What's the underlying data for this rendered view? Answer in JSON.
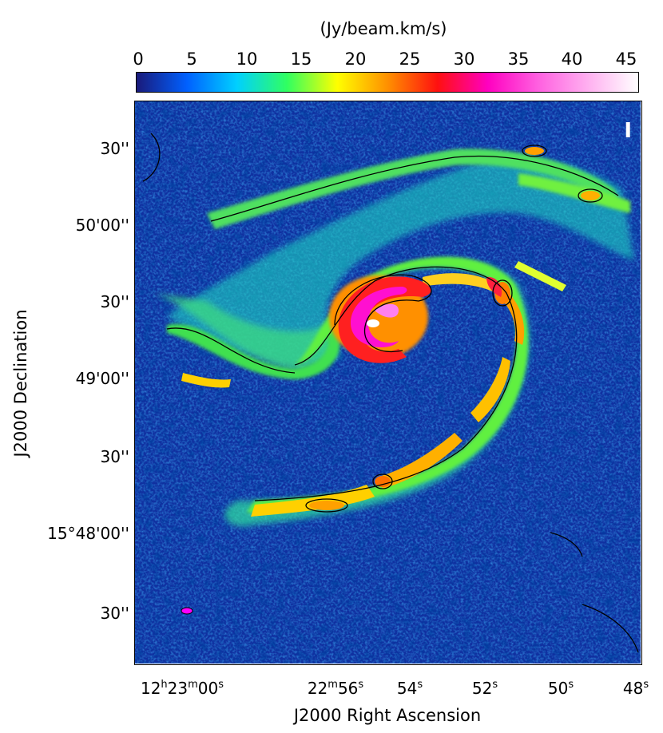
{
  "colorbar": {
    "unit_label": "(Jy/beam.km/s)",
    "ticks": [
      "0",
      "5",
      "10",
      "15",
      "20",
      "25",
      "30",
      "35",
      "40",
      "45"
    ],
    "colors": [
      "#1a1a7a",
      "#0060ff",
      "#00d0ff",
      "#30ff60",
      "#ffff00",
      "#ff9000",
      "#ff1010",
      "#ff00c0",
      "#ff60e0",
      "#ffb0f0",
      "#ffffff"
    ]
  },
  "map": {
    "panel_label": "I",
    "beam_color": "#ff00ff",
    "background_color": "#1030a0"
  },
  "axes": {
    "xlabel": "J2000 Right Ascension",
    "ylabel": "J2000 Declination",
    "x_ticks": [
      {
        "base": "12",
        "h": "h",
        "mid": "23",
        "m": "m",
        "end": "00",
        "s": "s"
      },
      {
        "base": "22",
        "h": "",
        "mid": "",
        "m": "m",
        "end": "56",
        "s": "s"
      },
      {
        "base": "",
        "h": "",
        "mid": "",
        "m": "",
        "end": "54",
        "s": "s"
      },
      {
        "base": "",
        "h": "",
        "mid": "",
        "m": "",
        "end": "52",
        "s": "s"
      },
      {
        "base": "",
        "h": "",
        "mid": "",
        "m": "",
        "end": "50",
        "s": "s"
      },
      {
        "base": "",
        "h": "",
        "mid": "",
        "m": "",
        "end": "48",
        "s": "s"
      }
    ],
    "y_ticks": [
      "30''",
      "50'00''",
      "30''",
      "49'00''",
      "30''",
      "15°48'00''",
      "30''"
    ]
  }
}
